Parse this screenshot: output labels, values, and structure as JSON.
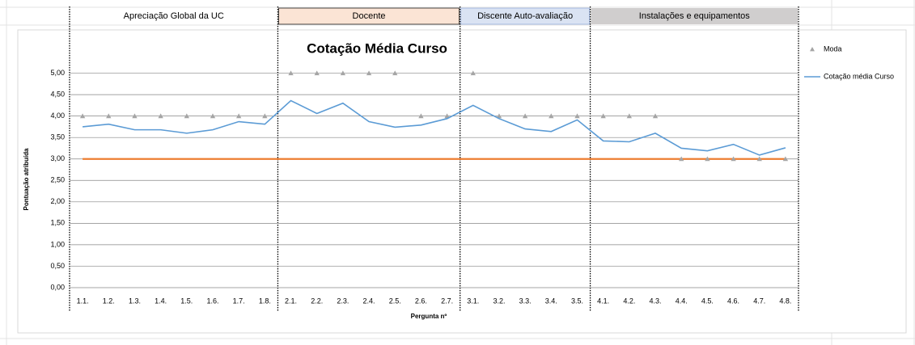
{
  "chart_data": {
    "type": "line",
    "title": "Cotação Média Curso",
    "x_label": "Pergunta nº",
    "y_label": "Pontuação atribuída",
    "groups": [
      {
        "name": "Apreciação Global da UC",
        "color": "#ffffff"
      },
      {
        "name": "Docente",
        "color": "#fbe4d5"
      },
      {
        "name": "Discente Auto-avaliação",
        "color": "#dae3f3"
      },
      {
        "name": "Instalações e equipamentos",
        "color": "#d0cece"
      }
    ],
    "categories": [
      "1.1.",
      "1.2.",
      "1.3.",
      "1.4.",
      "1.5.",
      "1.6.",
      "1.7.",
      "1.8.",
      "2.1.",
      "2.2.",
      "2.3.",
      "2.4.",
      "2.5.",
      "2.6.",
      "2.7.",
      "3.1.",
      "3.2.",
      "3.3.",
      "3.4.",
      "3.5.",
      "4.1.",
      "4.2.",
      "4.3.",
      "4.4.",
      "4.5.",
      "4.6.",
      "4.7.",
      "4.8."
    ],
    "series": [
      {
        "name": "Moda",
        "color": "#a5a5a5",
        "marker": "triangle",
        "values": [
          4,
          4,
          4,
          4,
          4,
          4,
          4,
          4,
          5,
          5,
          5,
          5,
          5,
          4,
          4,
          5,
          4,
          4,
          4,
          4,
          4,
          4,
          4,
          3,
          3,
          3,
          3,
          3
        ]
      },
      {
        "name": "Cotação média Curso",
        "color": "#5b9bd5",
        "marker": "line",
        "values": [
          3.75,
          3.81,
          3.68,
          3.68,
          3.6,
          3.68,
          3.87,
          3.81,
          4.36,
          4.06,
          4.3,
          3.87,
          3.74,
          3.79,
          3.94,
          4.25,
          3.94,
          3.7,
          3.64,
          3.91,
          3.42,
          3.4,
          3.6,
          3.25,
          3.19,
          3.34,
          3.09,
          3.26
        ]
      }
    ],
    "reference_line": {
      "value": 3,
      "color": "#ed7d31"
    },
    "ylim": [
      0,
      5.5
    ],
    "yticks": [
      {
        "value": 0,
        "label": "0,00"
      },
      {
        "value": 0.5,
        "label": "0,50"
      },
      {
        "value": 1,
        "label": "1,00"
      },
      {
        "value": 1.5,
        "label": "1,50"
      },
      {
        "value": 2,
        "label": "2,00"
      },
      {
        "value": 2.5,
        "label": "2,50"
      },
      {
        "value": 3,
        "label": "3,00"
      },
      {
        "value": 3.5,
        "label": "3,50"
      },
      {
        "value": 4,
        "label": "4,00"
      },
      {
        "value": 4.5,
        "label": "4,50"
      },
      {
        "value": 5,
        "label": "5,00"
      }
    ],
    "grid": true,
    "legend": "right"
  }
}
